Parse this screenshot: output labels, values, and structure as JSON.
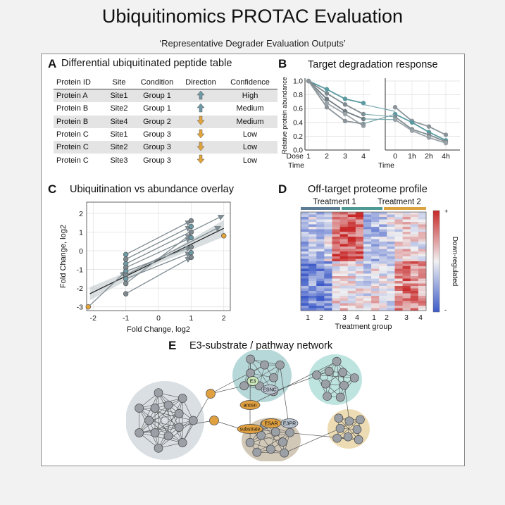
{
  "header": {
    "title": "Ubiquitinomics PROTAC Evaluation",
    "subtitle": "‘Representative Degrader Evaluation Outputs’"
  },
  "panel_a": {
    "letter": "A",
    "title": "Differential ubiquitinated peptide table",
    "columns": [
      "Protein ID",
      "Site",
      "Condition",
      "Direction",
      "Confidence"
    ],
    "rows": [
      {
        "protein": "Protein A",
        "site": "Site1",
        "condition": "Group 1",
        "direction": "up",
        "confidence": "High"
      },
      {
        "protein": "Protein B",
        "site": "Site2",
        "condition": "Group 1",
        "direction": "up",
        "confidence": "Medium"
      },
      {
        "protein": "Protein B",
        "site": "Site4",
        "condition": "Group 2",
        "direction": "down",
        "confidence": "Medium"
      },
      {
        "protein": "Protein C",
        "site": "Site1",
        "condition": "Group 3",
        "direction": "down",
        "confidence": "Low"
      },
      {
        "protein": "Protein C",
        "site": "Site2",
        "condition": "Group 3",
        "direction": "down",
        "confidence": "Low"
      },
      {
        "protein": "Protein C",
        "site": "Site3",
        "condition": "Group 3",
        "direction": "down",
        "confidence": "Low"
      }
    ],
    "colors": {
      "up": "#6e9aa6",
      "down": "#e3a53a"
    }
  },
  "panel_b": {
    "letter": "B",
    "title": "Target degradation response"
  },
  "panel_c": {
    "letter": "C",
    "title": "Ubiquitination vs abundance overlay"
  },
  "panel_d": {
    "letter": "D",
    "title": "Off-target proteome profile"
  },
  "panel_e": {
    "letter": "E",
    "title": "E3-substrate / pathway network"
  },
  "chart_data": [
    {
      "type": "line",
      "panel": "B-left",
      "ylabel": "Relative protein abundance",
      "xlabel": "Time",
      "x_prefix": "Dose",
      "x": [
        1,
        2,
        3,
        4
      ],
      "yticks": [
        "0.0",
        "0.2",
        "0.4",
        "0.6",
        "0.8",
        "1.0"
      ],
      "ylim": [
        0,
        1.0
      ],
      "series": [
        {
          "values": [
            1.0,
            0.88,
            0.74,
            0.68
          ],
          "color": "#5a9aa0"
        },
        {
          "values": [
            1.0,
            0.82,
            0.66,
            0.52
          ],
          "color": "#7f8a90"
        },
        {
          "values": [
            1.0,
            0.74,
            0.56,
            0.45
          ],
          "color": "#6e7a80"
        },
        {
          "values": [
            1.0,
            0.68,
            0.52,
            0.35
          ],
          "color": "#9aa3a8"
        },
        {
          "values": [
            1.0,
            0.62,
            0.42,
            0.38
          ],
          "color": "#8a9499"
        }
      ]
    },
    {
      "type": "line",
      "panel": "B-right",
      "xlabel": "Time",
      "categories": [
        "0",
        "1h",
        "2h",
        "4h"
      ],
      "series": [
        {
          "values": [
            0.62,
            0.42,
            0.34,
            0.22
          ],
          "color": "#8a9499"
        },
        {
          "values": [
            0.52,
            0.4,
            0.26,
            0.14
          ],
          "color": "#5a9aa0"
        },
        {
          "values": [
            0.48,
            0.3,
            0.22,
            0.12
          ],
          "color": "#7f8a90"
        },
        {
          "values": [
            0.44,
            0.28,
            0.18,
            0.1
          ],
          "color": "#9aa3a8"
        }
      ]
    },
    {
      "type": "scatter",
      "panel": "C",
      "xlabel": "Fold Change, log2",
      "ylabel": "Fold Change, log2",
      "xticks": [
        -2,
        -1,
        0,
        1,
        2
      ],
      "yticks": [
        -3,
        -2,
        -1,
        0,
        1,
        2
      ],
      "xlim": [
        -2.2,
        2.2
      ],
      "ylim": [
        -3.2,
        2.6
      ],
      "points": [
        {
          "x": -2.15,
          "y": -3.0,
          "color": "#e3a53a"
        },
        {
          "x": 2.0,
          "y": 0.8,
          "color": "#e3a53a"
        },
        {
          "x": -1,
          "y": -0.2,
          "color": "#6e9aa6"
        },
        {
          "x": -1,
          "y": -0.45,
          "color": "#7f8a90"
        },
        {
          "x": -1,
          "y": -0.7,
          "color": "#6e9aa6"
        },
        {
          "x": -1,
          "y": -0.9,
          "color": "#7f8a90"
        },
        {
          "x": -1,
          "y": -1.1,
          "color": "#6e9aa6"
        },
        {
          "x": -1,
          "y": -1.3,
          "color": "#7f8a90"
        },
        {
          "x": -1,
          "y": -1.5,
          "color": "#6e9aa6"
        },
        {
          "x": -1,
          "y": -1.75,
          "color": "#7f8a90"
        },
        {
          "x": -1,
          "y": -2.3,
          "color": "#7f8a90"
        },
        {
          "x": 1,
          "y": 1.6,
          "color": "#7f8a90"
        },
        {
          "x": 1,
          "y": 1.3,
          "color": "#6e9aa6"
        },
        {
          "x": 1,
          "y": 1.0,
          "color": "#7f8a90"
        },
        {
          "x": 1,
          "y": 0.7,
          "color": "#6e9aa6"
        },
        {
          "x": 1,
          "y": 0.2,
          "color": "#7f8a90"
        },
        {
          "x": 1,
          "y": -0.1,
          "color": "#6e9aa6"
        },
        {
          "x": 1,
          "y": -0.35,
          "color": "#7f8a90"
        }
      ],
      "arrows": [
        [
          -1,
          -0.2,
          1,
          1.6
        ],
        [
          -1,
          -0.45,
          1,
          1.3
        ],
        [
          -1,
          -0.7,
          2.0,
          1.9
        ],
        [
          -1,
          -0.9,
          1,
          0.7
        ],
        [
          -1,
          -1.1,
          1,
          0.2
        ],
        [
          -1,
          -1.3,
          1.9,
          1.3
        ],
        [
          -1,
          -1.5,
          1,
          -0.1
        ],
        [
          -1,
          -1.75,
          1,
          0.9
        ],
        [
          -1,
          -2.3,
          1,
          -0.35
        ],
        [
          -2.15,
          -3.0,
          -1,
          -1.1
        ]
      ],
      "fit": {
        "x0": -2.1,
        "y0": -2.3,
        "x1": 2.0,
        "y1": 1.2
      }
    },
    {
      "type": "heatmap",
      "panel": "D",
      "xlabel": "Treatment group",
      "colorbar_label": "Down-regulated",
      "colorbar_top": "+",
      "colorbar_bottom": "-",
      "groups": [
        {
          "name": "Treatment 1",
          "color": "#5c7c96"
        },
        {
          "name": "",
          "color": "#4f9994"
        },
        {
          "name": "Treatment 2",
          "color": "#d9a441"
        }
      ],
      "xticks": [
        "1",
        "2",
        "3",
        "4",
        "1",
        "2",
        "3",
        "4"
      ],
      "n_rows": 40,
      "n_cols": 16,
      "column_bias_upper": [
        -0.5,
        -0.3,
        -0.4,
        -0.2,
        0.9,
        1.0,
        0.95,
        0.9,
        -0.4,
        -0.5,
        -0.3,
        -0.2,
        0.0,
        0.2,
        0.1,
        0.0
      ],
      "column_bias_lower": [
        -0.9,
        -0.8,
        -0.9,
        -0.7,
        0.1,
        0.2,
        0.1,
        0.0,
        -0.2,
        0.1,
        0.0,
        -0.1,
        0.6,
        0.8,
        0.7,
        0.5
      ]
    },
    {
      "type": "network",
      "panel": "E",
      "labels": {
        "e3": "E3",
        "esnc": "ESNC",
        "anosn": "anosn",
        "substrate": "substrate",
        "esar": "ESAR",
        "e3pr": "E3PR"
      },
      "cluster_colors": [
        "#d3d9de",
        "#a9d1d2",
        "#b3dfda",
        "#c9beab",
        "#ead6a6"
      ],
      "node_color": "#9aa0a6",
      "hub_color": "#e0a040"
    }
  ]
}
